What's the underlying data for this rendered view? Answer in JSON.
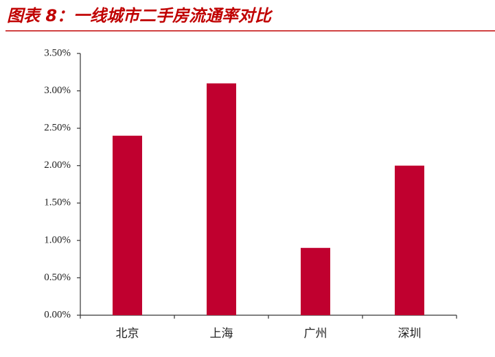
{
  "chart_data": {
    "type": "bar",
    "title": "图表 8：一线城市二手房流通率对比",
    "categories": [
      "北京",
      "上海",
      "广州",
      "深圳"
    ],
    "values": [
      2.4,
      3.1,
      0.9,
      2.0
    ],
    "color": "#c0002f",
    "ylim": [
      0,
      3.5
    ],
    "yticks": [
      {
        "value": 0,
        "label": "0.00%"
      },
      {
        "value": 0.5,
        "label": "0.50%"
      },
      {
        "value": 1,
        "label": "1.00%"
      },
      {
        "value": 1.5,
        "label": "1.50%"
      },
      {
        "value": 2,
        "label": "2.00%"
      },
      {
        "value": 2.5,
        "label": "2.50%"
      },
      {
        "value": 3,
        "label": "3.00%"
      },
      {
        "value": 3.5,
        "label": "3.50%"
      }
    ],
    "grid": false
  }
}
